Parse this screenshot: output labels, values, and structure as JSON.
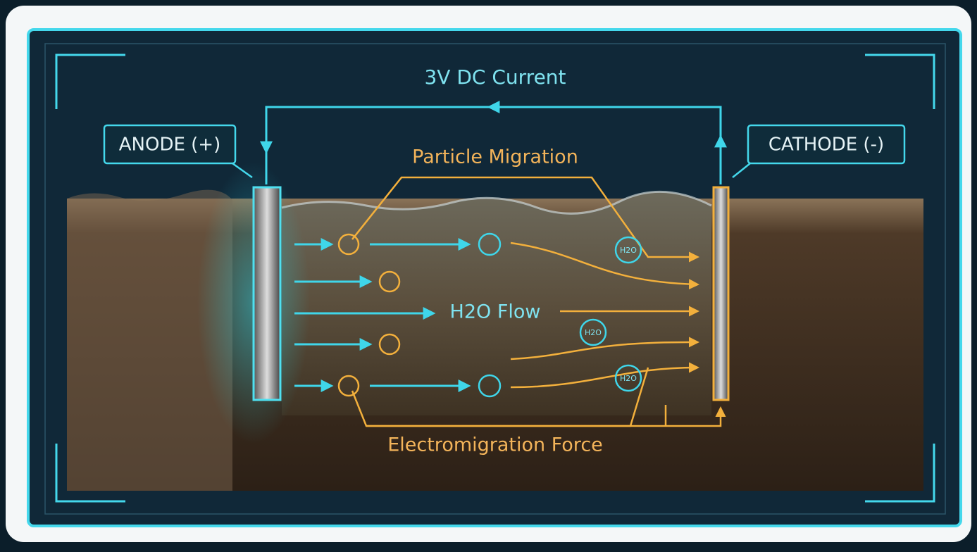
{
  "header": {
    "title": "3V DC Current"
  },
  "electrodes": [
    {
      "label": "ANODE (+)"
    },
    {
      "label": "CATHODE (-)"
    }
  ],
  "flows": [
    {
      "label": "Particle Migration"
    },
    {
      "label": "H2O Flow"
    },
    {
      "label": "Electromigration Force"
    }
  ],
  "molecules": [
    {
      "label": "H2O"
    },
    {
      "label": "H2O"
    },
    {
      "label": "H2O"
    }
  ]
}
